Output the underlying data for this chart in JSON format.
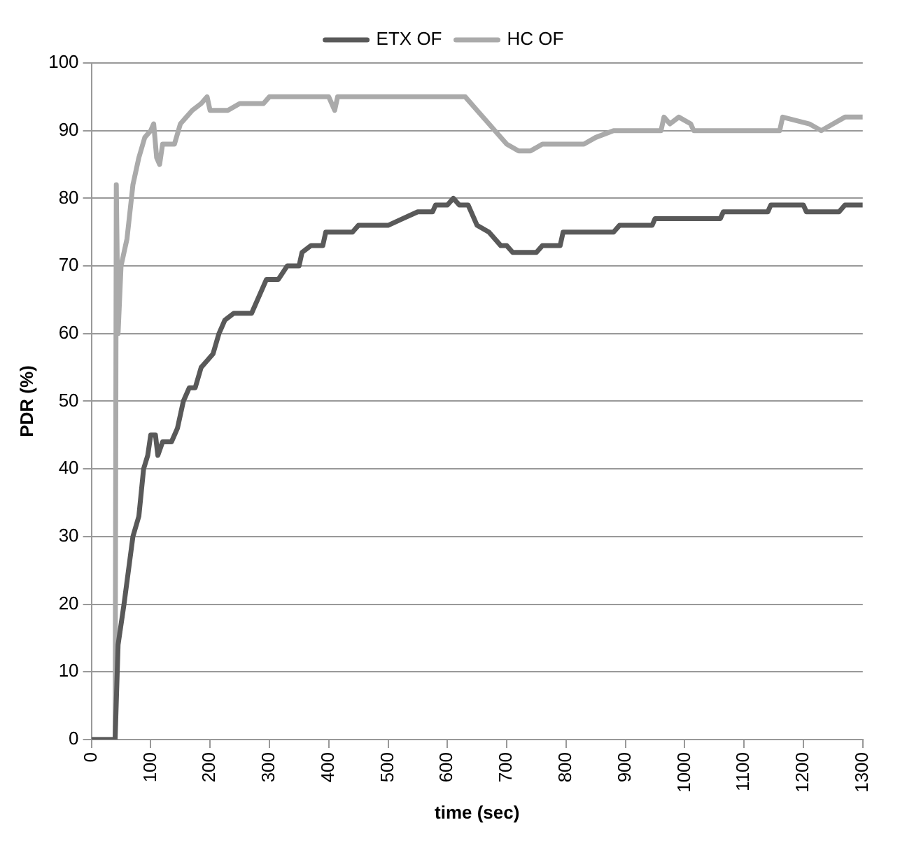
{
  "chart_data": {
    "type": "line",
    "xlabel": "time (sec)",
    "ylabel": "PDR (%)",
    "xlim": [
      0,
      1300
    ],
    "xticks": [
      0,
      100,
      200,
      300,
      400,
      500,
      600,
      700,
      800,
      900,
      1000,
      1100,
      1200,
      1300
    ],
    "ylim": [
      0,
      100
    ],
    "yticks": [
      0,
      10,
      20,
      30,
      40,
      50,
      60,
      70,
      80,
      90,
      100
    ],
    "grid": "y",
    "legend": "top",
    "marker": "none",
    "line_style": "solid",
    "series": [
      {
        "name": "ETX OF",
        "color": "#595959",
        "x": [
          0,
          40,
          45,
          55,
          70,
          80,
          88,
          95,
          100,
          108,
          112,
          120,
          135,
          145,
          155,
          165,
          175,
          185,
          195,
          205,
          215,
          225,
          240,
          270,
          280,
          295,
          315,
          330,
          350,
          355,
          370,
          390,
          395,
          440,
          450,
          500,
          525,
          550,
          575,
          580,
          600,
          610,
          620,
          635,
          650,
          670,
          690,
          700,
          710,
          750,
          760,
          790,
          795,
          880,
          890,
          945,
          950,
          1060,
          1065,
          1140,
          1145,
          1200,
          1205,
          1260,
          1270,
          1300
        ],
        "values": [
          0,
          0,
          14,
          20,
          30,
          33,
          40,
          42,
          45,
          45,
          42,
          44,
          44,
          46,
          50,
          52,
          52,
          55,
          56,
          57,
          60,
          62,
          63,
          63,
          65,
          68,
          68,
          70,
          70,
          72,
          73,
          73,
          75,
          75,
          76,
          76,
          77,
          78,
          78,
          79,
          79,
          80,
          79,
          79,
          76,
          75,
          73,
          73,
          72,
          72,
          73,
          73,
          75,
          75,
          76,
          76,
          77,
          77,
          78,
          78,
          79,
          79,
          78,
          78,
          79,
          79
        ]
      },
      {
        "name": "HC OF",
        "color": "#aaaaaa",
        "x": [
          0,
          40,
          42,
          45,
          50,
          55,
          60,
          70,
          80,
          90,
          100,
          105,
          110,
          115,
          120,
          140,
          150,
          160,
          170,
          185,
          195,
          200,
          230,
          250,
          290,
          300,
          400,
          410,
          415,
          600,
          630,
          650,
          670,
          680,
          700,
          720,
          740,
          760,
          800,
          830,
          850,
          880,
          960,
          965,
          975,
          990,
          1010,
          1015,
          1160,
          1165,
          1210,
          1230,
          1250,
          1270,
          1300
        ],
        "values": [
          0,
          0,
          82,
          60,
          70,
          72,
          74,
          82,
          86,
          89,
          90,
          91,
          86,
          85,
          88,
          88,
          91,
          92,
          93,
          94,
          95,
          93,
          93,
          94,
          94,
          95,
          95,
          93,
          95,
          95,
          95,
          93,
          91,
          90,
          88,
          87,
          87,
          88,
          88,
          88,
          89,
          90,
          90,
          92,
          91,
          92,
          91,
          90,
          90,
          92,
          91,
          90,
          91,
          92,
          92
        ]
      }
    ]
  }
}
